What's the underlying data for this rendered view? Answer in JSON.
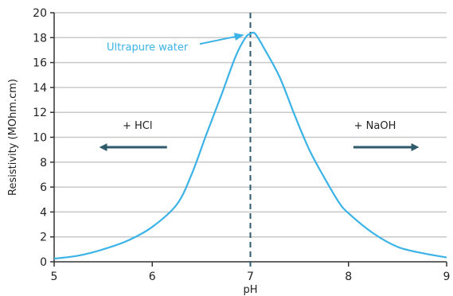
{
  "chart_data": {
    "type": "line",
    "title": "",
    "xlabel": "pH",
    "ylabel": "Resistivity (MOhm.cm)",
    "xlim": [
      5,
      9
    ],
    "ylim": [
      0,
      20
    ],
    "x_ticks": [
      5,
      6,
      7,
      8,
      9
    ],
    "y_ticks": [
      0,
      2,
      4,
      6,
      8,
      10,
      12,
      14,
      16,
      18,
      20
    ],
    "grid": "horizontal",
    "series": [
      {
        "color": "#3bb3e6",
        "x": [
          5.0,
          5.25,
          5.5,
          5.75,
          6.0,
          6.25,
          6.4,
          6.55,
          6.7,
          6.85,
          6.95,
          7.0,
          7.05,
          7.15,
          7.3,
          7.45,
          7.6,
          7.75,
          7.9,
          8.0,
          8.25,
          8.5,
          8.75,
          9.0
        ],
        "y": [
          0.25,
          0.5,
          1.0,
          1.7,
          2.8,
          4.6,
          7.0,
          10.2,
          13.3,
          16.5,
          18.0,
          18.3,
          18.3,
          17.0,
          14.8,
          11.8,
          9.0,
          6.8,
          4.8,
          3.9,
          2.3,
          1.2,
          0.7,
          0.35
        ]
      }
    ],
    "reference_line": {
      "x": 7.0,
      "style": "dashed",
      "color": "#2e5a6b"
    },
    "annotations": [
      {
        "text": "Ultrapure water",
        "x": 5.95,
        "y": 17.3,
        "color": "#3bb3e6",
        "arrow_to": [
          6.92,
          18.2
        ]
      },
      {
        "text": "+ HCl",
        "x": 5.85,
        "y": 11.0,
        "color": "#222222"
      },
      {
        "text": "+ NaOH",
        "x": 8.27,
        "y": 11.0,
        "color": "#222222"
      }
    ],
    "direction_arrows": [
      {
        "from": 6.15,
        "to": 5.5,
        "y": 9.2,
        "color": "#2e5a6b"
      },
      {
        "from": 8.05,
        "to": 8.68,
        "y": 9.2,
        "color": "#2e5a6b"
      }
    ],
    "colors": {
      "grid": "#c8c8c8",
      "axis": "#333333",
      "dark_arrow": "#2e5a6b",
      "curve": "#3bb3e6"
    }
  }
}
